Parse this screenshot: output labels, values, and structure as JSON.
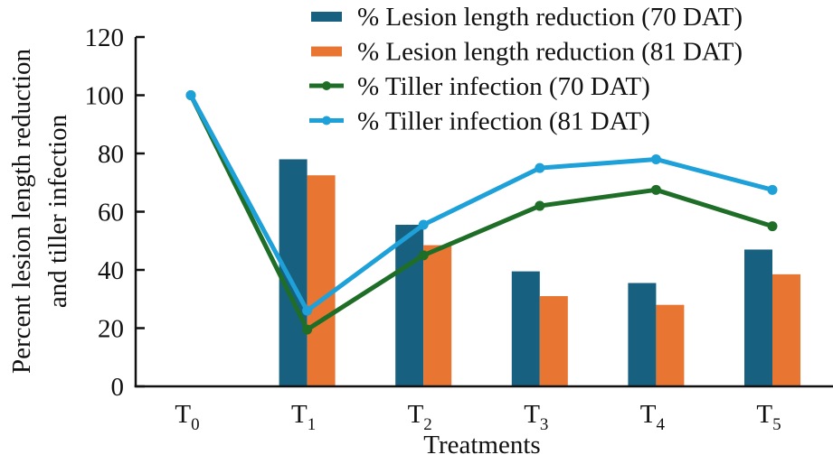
{
  "chart_data": {
    "type": "bar",
    "title": "",
    "xlabel": "Treatments",
    "ylabel": [
      "Percent lesion length reduction",
      "and tiller infection"
    ],
    "ylim": [
      0,
      120
    ],
    "yticks": [
      0,
      20,
      40,
      60,
      80,
      100,
      120
    ],
    "grid": false,
    "legend_position": "top-right",
    "categories": [
      {
        "main": "T",
        "sub": "0"
      },
      {
        "main": "T",
        "sub": "1"
      },
      {
        "main": "T",
        "sub": "2"
      },
      {
        "main": "T",
        "sub": "3"
      },
      {
        "main": "T",
        "sub": "4"
      },
      {
        "main": "T",
        "sub": "5"
      }
    ],
    "series": [
      {
        "name": "% Lesion length reduction (70 DAT)",
        "kind": "bar",
        "color": "#17607f",
        "values": [
          null,
          78,
          55.5,
          39.5,
          35.5,
          47
        ]
      },
      {
        "name": "% Lesion length reduction (81 DAT)",
        "kind": "bar",
        "color": "#e87532",
        "values": [
          null,
          72.5,
          48.5,
          31,
          28,
          38.5
        ]
      },
      {
        "name": "% Tiller infection (70 DAT)",
        "kind": "line",
        "color": "#1e6e28",
        "values": [
          100,
          19.5,
          45,
          62,
          67.5,
          55
        ]
      },
      {
        "name": "% Tiller infection (81 DAT)",
        "kind": "line",
        "color": "#1ea0d8",
        "values": [
          100,
          26,
          55.5,
          75,
          78,
          67.5
        ]
      }
    ]
  }
}
